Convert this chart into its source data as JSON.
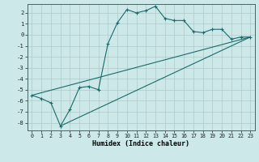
{
  "title": "",
  "xlabel": "Humidex (Indice chaleur)",
  "bg_color": "#cce8e8",
  "grid_color": "#b0c8c8",
  "line_color": "#1a6b6b",
  "xlim": [
    -0.5,
    23.5
  ],
  "ylim": [
    -8.7,
    2.8
  ],
  "yticks": [
    2,
    1,
    0,
    -1,
    -2,
    -3,
    -4,
    -5,
    -6,
    -7,
    -8
  ],
  "xticks": [
    0,
    1,
    2,
    3,
    4,
    5,
    6,
    7,
    8,
    9,
    10,
    11,
    12,
    13,
    14,
    15,
    16,
    17,
    18,
    19,
    20,
    21,
    22,
    23
  ],
  "line1_x": [
    0,
    1,
    2,
    3,
    4,
    5,
    6,
    7,
    8,
    9,
    10,
    11,
    12,
    13,
    14,
    15,
    16,
    17,
    18,
    19,
    20,
    21,
    22,
    23
  ],
  "line1_y": [
    -5.5,
    -5.8,
    -6.2,
    -8.3,
    -6.8,
    -4.8,
    -4.7,
    -5.0,
    -0.8,
    1.1,
    2.3,
    2.0,
    2.2,
    2.6,
    1.5,
    1.3,
    1.3,
    0.3,
    0.2,
    0.5,
    0.5,
    -0.4,
    -0.2,
    -0.2
  ],
  "line2_x": [
    0,
    23
  ],
  "line2_y": [
    -5.5,
    -0.2
  ],
  "line3_x": [
    3,
    23
  ],
  "line3_y": [
    -8.3,
    -0.2
  ]
}
